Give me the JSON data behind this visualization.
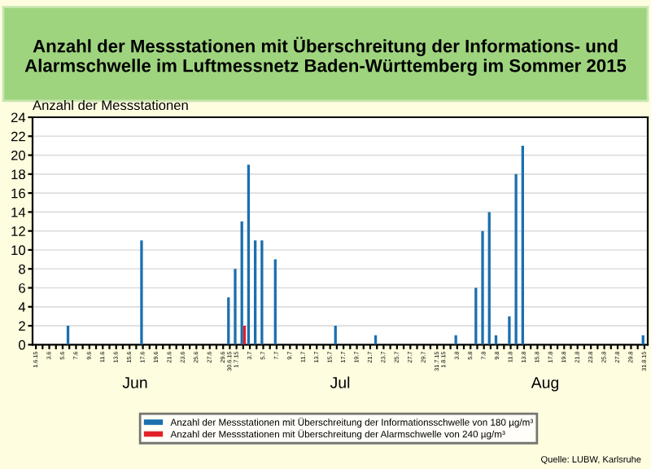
{
  "chart_data": {
    "type": "bar",
    "title": "Anzahl der Messstationen mit Überschreitung der Informations- und Alarmschwelle im Luftmessnetz Baden-Württemberg im Sommer 2015",
    "ylabel": "Anzahl der Messstationen",
    "categories": [
      "1.6.15",
      null,
      "3.6",
      null,
      "5.6",
      null,
      "7.6",
      null,
      "9.6",
      null,
      "11.6",
      null,
      "13.6",
      null,
      "15.6",
      null,
      "17.6",
      null,
      "19.6",
      null,
      "21.6",
      null,
      "23.6",
      null,
      "25.6",
      null,
      "27.6",
      null,
      "29.6",
      "30.6.15",
      "1.7.15",
      null,
      "3.7",
      null,
      "5.7",
      null,
      "7.7",
      null,
      "9.7",
      null,
      "11.7",
      null,
      "13.7",
      null,
      "15.7",
      null,
      "17.7",
      null,
      "19.7",
      null,
      "21.7",
      null,
      "23.7",
      null,
      "25.7",
      null,
      "27.7",
      null,
      "29.7",
      null,
      "31.7.15",
      "1.8.15",
      null,
      "3.8",
      null,
      "5.8",
      null,
      "7.8",
      null,
      "9.8",
      null,
      "11.8",
      null,
      "13.8",
      null,
      "15.8",
      null,
      "17.8",
      null,
      "19.8",
      null,
      "21.8",
      null,
      "23.8",
      null,
      "25.8",
      null,
      "27.8",
      null,
      "29.8",
      null,
      "31.8.15"
    ],
    "series": [
      {
        "name": "Anzahl der Messstationen mit Überschreitung der Informationsschwelle von 180 µg/m³",
        "color": "#1b6fae",
        "values": [
          0,
          0,
          0,
          0,
          0,
          2,
          0,
          0,
          0,
          0,
          0,
          0,
          0,
          0,
          0,
          0,
          11,
          0,
          0,
          0,
          0,
          0,
          0,
          0,
          0,
          0,
          0,
          0,
          0,
          5,
          8,
          13,
          19,
          11,
          11,
          0,
          9,
          0,
          0,
          0,
          0,
          0,
          0,
          0,
          0,
          2,
          0,
          0,
          0,
          0,
          0,
          1,
          0,
          0,
          0,
          0,
          0,
          0,
          0,
          0,
          0,
          0,
          0,
          1,
          0,
          0,
          6,
          12,
          14,
          1,
          0,
          3,
          18,
          21,
          0,
          0,
          0,
          0,
          0,
          0,
          0,
          0,
          0,
          0,
          0,
          0,
          0,
          0,
          0,
          0,
          0,
          1
        ]
      },
      {
        "name": "Anzahl der Messstationen mit Überschreitung der Alarmschwelle von 240 µg/m³",
        "color": "#e3202a",
        "values": [
          0,
          0,
          0,
          0,
          0,
          0,
          0,
          0,
          0,
          0,
          0,
          0,
          0,
          0,
          0,
          0,
          0,
          0,
          0,
          0,
          0,
          0,
          0,
          0,
          0,
          0,
          0,
          0,
          0,
          0,
          0,
          2,
          0,
          0,
          0,
          0,
          0,
          0,
          0,
          0,
          0,
          0,
          0,
          0,
          0,
          0,
          0,
          0,
          0,
          0,
          0,
          0,
          0,
          0,
          0,
          0,
          0,
          0,
          0,
          0,
          0,
          0,
          0,
          0,
          0,
          0,
          0,
          0,
          0,
          0,
          0,
          0,
          0,
          0,
          0,
          0,
          0,
          0,
          0,
          0,
          0,
          0,
          0,
          0,
          0,
          0,
          0,
          0,
          0,
          0,
          0,
          0
        ]
      }
    ],
    "ylim": [
      0,
      24
    ],
    "yticks": [
      0,
      2,
      4,
      6,
      8,
      10,
      12,
      14,
      16,
      18,
      20,
      22,
      24
    ],
    "grid": "y",
    "legend": "bottom",
    "annotations": [
      "Jun",
      "Jul",
      "Aug",
      "Quelle: LUBW, Karlsruhe"
    ]
  }
}
